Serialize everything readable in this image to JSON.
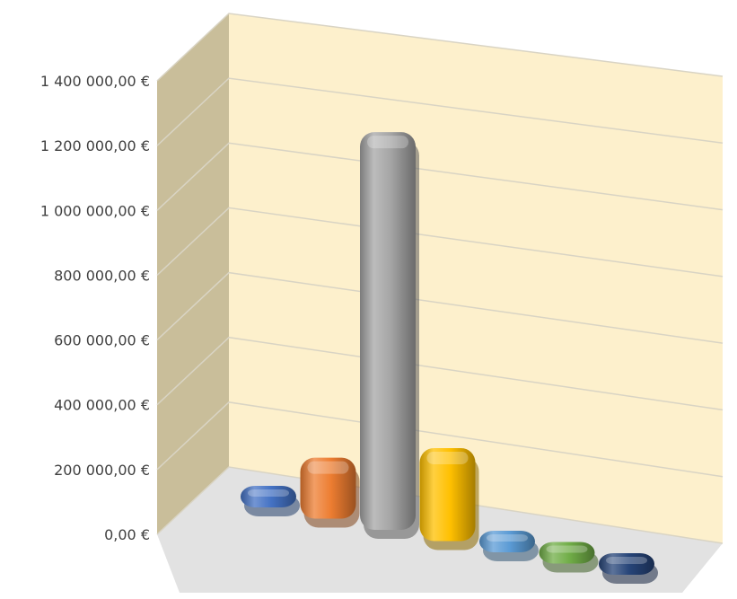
{
  "chart_data": {
    "type": "bar",
    "title": "",
    "xlabel": "",
    "ylabel": "",
    "ylim": [
      0,
      1400000
    ],
    "grid": true,
    "legend": "none",
    "three_d": true,
    "y_ticks": [
      {
        "value": 0,
        "label": "0,00 €"
      },
      {
        "value": 200000,
        "label": "200 000,00 €"
      },
      {
        "value": 400000,
        "label": "400 000,00 €"
      },
      {
        "value": 600000,
        "label": "600 000,00 €"
      },
      {
        "value": 800000,
        "label": "800 000,00 €"
      },
      {
        "value": 1000000,
        "label": "1 000 000,00 €"
      },
      {
        "value": 1200000,
        "label": "1 200 000,00 €"
      },
      {
        "value": 1400000,
        "label": "1 400 000,00 €"
      }
    ],
    "bars": [
      {
        "value": 5000,
        "color": "#4472C4"
      },
      {
        "value": 190000,
        "color": "#ED7D31"
      },
      {
        "value": 1240000,
        "color": "#A5A5A5"
      },
      {
        "value": 290000,
        "color": "#FFC000"
      },
      {
        "value": 8000,
        "color": "#5B9BD5"
      },
      {
        "value": 8000,
        "color": "#70AD47"
      },
      {
        "value": 5000,
        "color": "#264478"
      }
    ],
    "colors": {
      "back_wall": "#FDF0CC",
      "side_wall": "#C9BE9A",
      "floor": "#E2E2E2",
      "gridline": "#D9D4C4"
    }
  }
}
